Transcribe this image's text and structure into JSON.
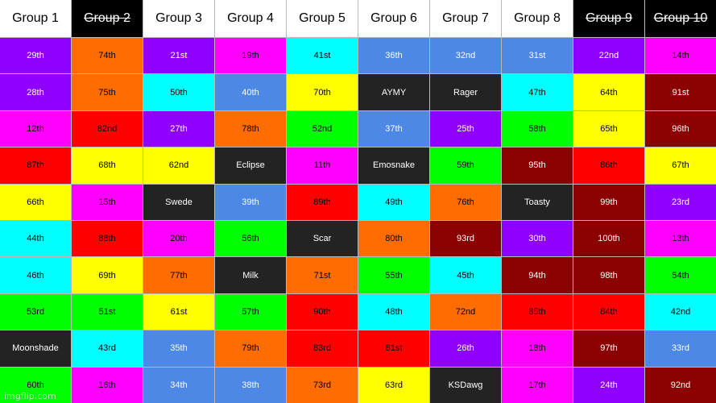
{
  "colors": {
    "V": "#9000ff",
    "O": "#ff6d00",
    "M": "#ff00ff",
    "C": "#00ffff",
    "B": "#4d88e6",
    "Y": "#ffff00",
    "G": "#00ff00",
    "R": "#ff0000",
    "D": "#8b0000",
    "K": "#232323",
    "W": "#ffffff",
    "X": "#000000"
  },
  "header_fill": [
    "W",
    "X",
    "W",
    "W",
    "W",
    "W",
    "W",
    "W",
    "X",
    "X"
  ],
  "headers": [
    "Group 1",
    "Group 2",
    "Group 3",
    "Group 4",
    "Group 5",
    "Group 6",
    "Group 7",
    "Group 8",
    "Group 9",
    "Group 10"
  ],
  "struck_headers": [
    1,
    8,
    9
  ],
  "rows": [
    [
      "29th",
      "74th",
      "21st",
      "19th",
      "41st",
      "36th",
      "32nd",
      "31st",
      "22nd",
      "14th"
    ],
    [
      "28th",
      "75th",
      "50th",
      "40th",
      "70th",
      "AYMY",
      "Rager",
      "47th",
      "64th",
      "91st"
    ],
    [
      "12th",
      "82nd",
      "27th",
      "78th",
      "52nd",
      "37th",
      "25th",
      "58th",
      "65th",
      "96th"
    ],
    [
      "87th",
      "68th",
      "62nd",
      "Eclipse",
      "11th",
      "Emosnake",
      "59th",
      "95th",
      "86th",
      "67th"
    ],
    [
      "66th",
      "15th",
      "Swede",
      "39th",
      "89th",
      "49th",
      "76th",
      "Toasty",
      "99th",
      "23rd"
    ],
    [
      "44th",
      "88th",
      "20th",
      "56th",
      "Scar",
      "80th",
      "93rd",
      "30th",
      "100th",
      "13th"
    ],
    [
      "46th",
      "69th",
      "77th",
      "Milk",
      "71st",
      "55th",
      "45th",
      "94th",
      "98th",
      "54th"
    ],
    [
      "53rd",
      "51st",
      "61st",
      "57th",
      "90th",
      "48th",
      "72nd",
      "85th",
      "84th",
      "42nd"
    ],
    [
      "Moonshade",
      "43rd",
      "35th",
      "79th",
      "83rd",
      "81st",
      "26th",
      "18th",
      "97th",
      "33rd"
    ],
    [
      "60th",
      "16th",
      "34th",
      "38th",
      "73rd",
      "63rd",
      "KSDawg",
      "17th",
      "24th",
      "92nd"
    ]
  ],
  "row_fills": [
    [
      "V",
      "O",
      "V",
      "M",
      "C",
      "B",
      "B",
      "B",
      "V",
      "M"
    ],
    [
      "V",
      "O",
      "C",
      "B",
      "Y",
      "K",
      "K",
      "C",
      "Y",
      "D"
    ],
    [
      "M",
      "R",
      "V",
      "O",
      "G",
      "B",
      "V",
      "G",
      "Y",
      "D"
    ],
    [
      "R",
      "Y",
      "Y",
      "K",
      "M",
      "K",
      "G",
      "D",
      "R",
      "Y"
    ],
    [
      "Y",
      "M",
      "K",
      "B",
      "R",
      "C",
      "O",
      "K",
      "D",
      "V"
    ],
    [
      "C",
      "R",
      "M",
      "G",
      "K",
      "O",
      "D",
      "V",
      "D",
      "M"
    ],
    [
      "C",
      "Y",
      "O",
      "K",
      "O",
      "G",
      "C",
      "D",
      "D",
      "G"
    ],
    [
      "G",
      "G",
      "Y",
      "G",
      "R",
      "C",
      "O",
      "R",
      "R",
      "C"
    ],
    [
      "K",
      "C",
      "B",
      "O",
      "R",
      "R",
      "V",
      "M",
      "D",
      "B"
    ],
    [
      "G",
      "M",
      "B",
      "B",
      "O",
      "Y",
      "K",
      "M",
      "V",
      "D"
    ]
  ],
  "watermark": "imgflip.com"
}
